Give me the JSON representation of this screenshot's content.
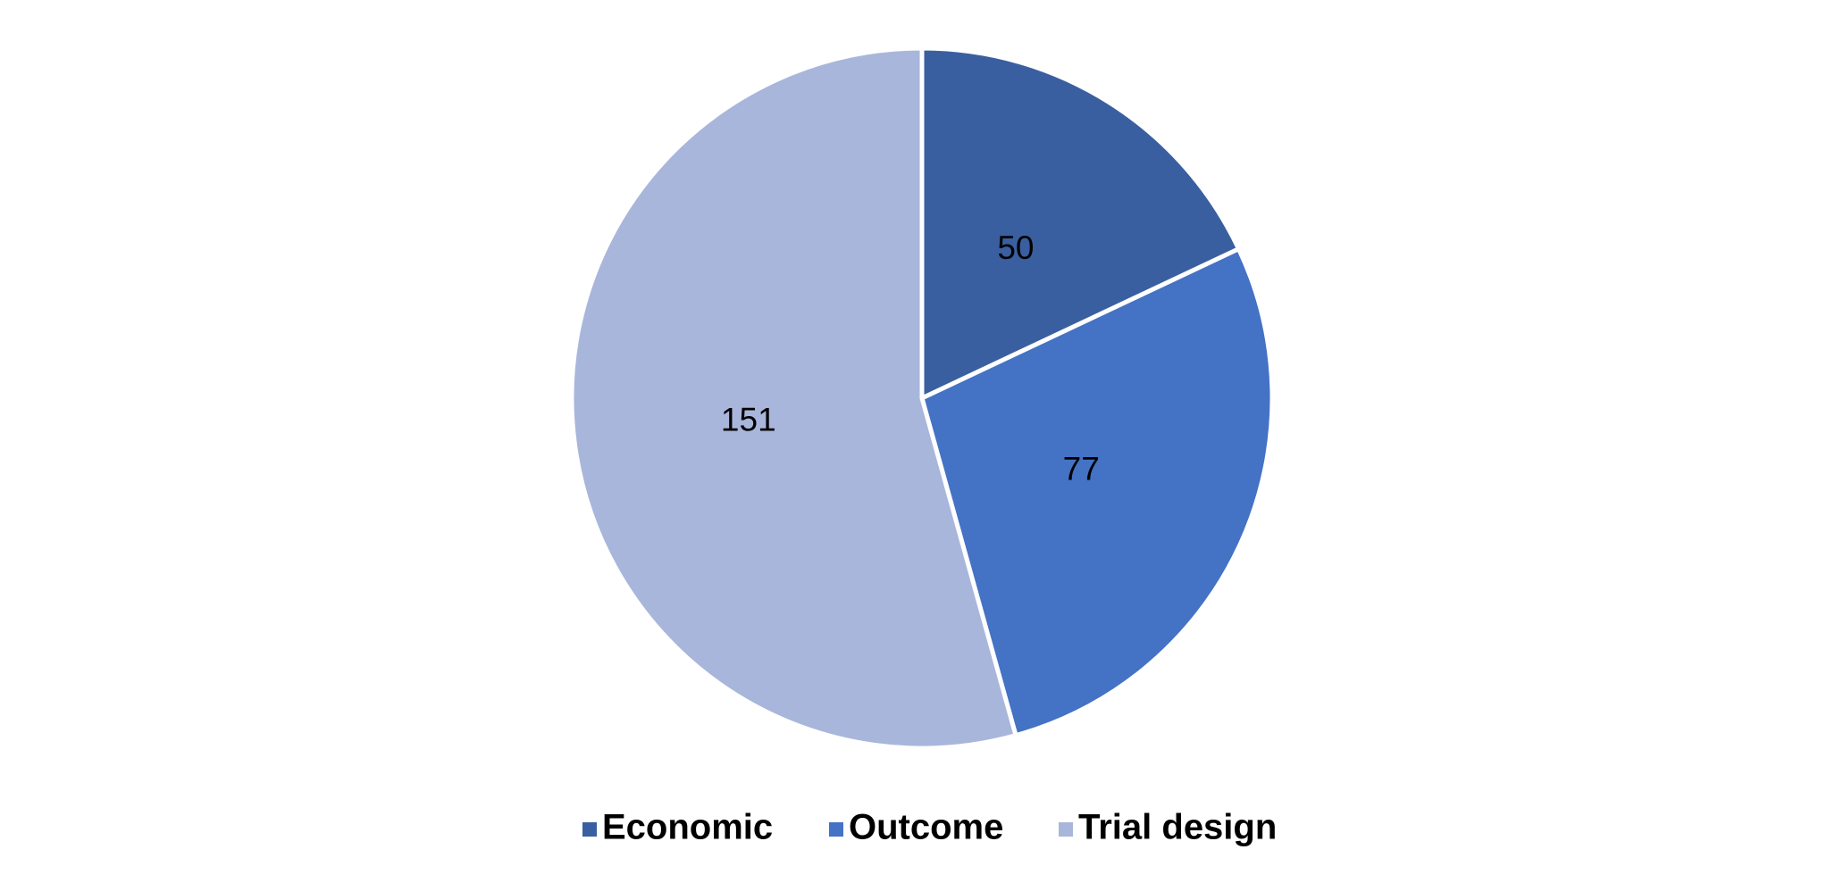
{
  "chart_data": {
    "type": "pie",
    "categories": [
      "Economic",
      "Outcome",
      "Trial design"
    ],
    "values": [
      50,
      77,
      151
    ],
    "colors": [
      "#3a5fa0",
      "#4472c4",
      "#a9b6db"
    ],
    "legend": "bottom"
  }
}
